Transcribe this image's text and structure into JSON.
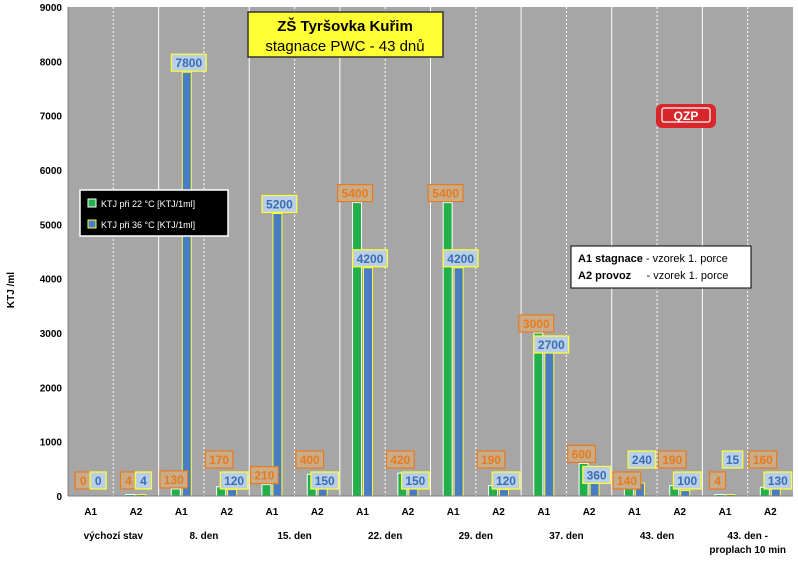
{
  "chart_data": {
    "type": "bar",
    "title": "ZŠ Tyršovka Kuřim",
    "subtitle": "stagnace PWC - 43 dnů",
    "ylabel": "KTJ /ml",
    "ylim": [
      0,
      9000
    ],
    "yticks": [
      0,
      1000,
      2000,
      3000,
      4000,
      5000,
      6000,
      7000,
      8000,
      9000
    ],
    "grid": false,
    "legend_position": "left",
    "categories": [
      "A1",
      "A2",
      "A1",
      "A2",
      "A1",
      "A2",
      "A1",
      "A2",
      "A1",
      "A2",
      "A1",
      "A2",
      "A1",
      "A2",
      "A1",
      "A2"
    ],
    "groups": [
      {
        "label": "výchozí stav"
      },
      {
        "label": "8. den"
      },
      {
        "label": "15. den"
      },
      {
        "label": "22. den"
      },
      {
        "label": "29. den"
      },
      {
        "label": "37. den"
      },
      {
        "label": "43. den"
      },
      {
        "label": "43. den -",
        "label2": "proplach 10 min"
      }
    ],
    "series": [
      {
        "name": "KTJ při 22 °C [KTJ/1ml]",
        "color": "#22b04a",
        "values": [
          0,
          4,
          130,
          170,
          210,
          400,
          5400,
          420,
          5400,
          190,
          3000,
          600,
          140,
          190,
          4,
          160
        ]
      },
      {
        "name": "KTJ při 36 °C [KTJ/1ml]",
        "color": "#4a7cc4",
        "values": [
          0,
          4,
          7800,
          120,
          5200,
          150,
          4200,
          150,
          4200,
          120,
          2700,
          360,
          240,
          100,
          15,
          130
        ]
      }
    ],
    "note": {
      "line1_bold": "A1 stagnace",
      "line1_text": " - vzorek 1. porce",
      "line2_bold": "A2 provoz",
      "line2_text": "     - vzorek 1. porce"
    },
    "logo": "QZP",
    "colors": {
      "plot_bg": "#a6a6a6",
      "label_bg_22": "#c9ad8b",
      "label_text_22": "#e87a1e",
      "label_bg_36": "#b9cfe6",
      "label_text_36": "#3a6db5",
      "title_bg": "#ffff33",
      "logo_red": "#d9262b"
    }
  }
}
